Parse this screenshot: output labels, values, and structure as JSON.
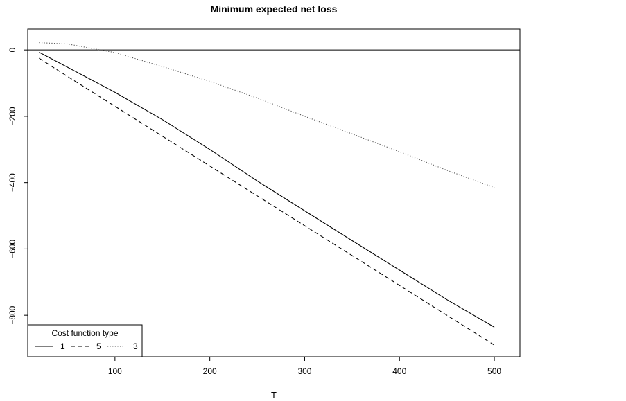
{
  "chart_data": {
    "type": "line",
    "title": "Minimum expected net loss",
    "xlabel": "T",
    "ylabel": "",
    "xlim": [
      8,
      527
    ],
    "ylim": [
      -925,
      63
    ],
    "x_ticks": [
      100,
      200,
      300,
      400,
      500
    ],
    "y_ticks": [
      0,
      -200,
      -400,
      -600,
      -800
    ],
    "x_tick_labels": [
      "100",
      "200",
      "300",
      "400",
      "500"
    ],
    "y_tick_labels": [
      "0",
      "−200",
      "−400",
      "−600",
      "−800"
    ],
    "reference_lines": [
      {
        "axis": "y",
        "value": 0
      }
    ],
    "grid": false,
    "legend": {
      "title": "Cost function type",
      "placement": "bottom-left",
      "orientation": "horizontal",
      "entries": [
        "1",
        "5",
        "3"
      ]
    },
    "series": [
      {
        "name": "1",
        "line_style": "solid",
        "color": "#000000",
        "x": [
          20,
          50,
          100,
          150,
          200,
          250,
          300,
          350,
          400,
          450,
          500
        ],
        "y": [
          -7,
          -52,
          -128,
          -210,
          -300,
          -395,
          -485,
          -575,
          -664,
          -753,
          -836
        ]
      },
      {
        "name": "5",
        "line_style": "dashed",
        "color": "#000000",
        "x": [
          20,
          50,
          100,
          150,
          200,
          250,
          300,
          350,
          400,
          450,
          500
        ],
        "y": [
          -25,
          -80,
          -170,
          -260,
          -350,
          -440,
          -530,
          -620,
          -710,
          -800,
          -890
        ]
      },
      {
        "name": "3",
        "line_style": "dotted",
        "color": "#555555",
        "x": [
          20,
          50,
          75,
          100,
          150,
          200,
          250,
          300,
          350,
          400,
          450,
          500
        ],
        "y": [
          22,
          18,
          5,
          -8,
          -50,
          -95,
          -145,
          -200,
          -253,
          -307,
          -363,
          -415
        ]
      }
    ]
  }
}
